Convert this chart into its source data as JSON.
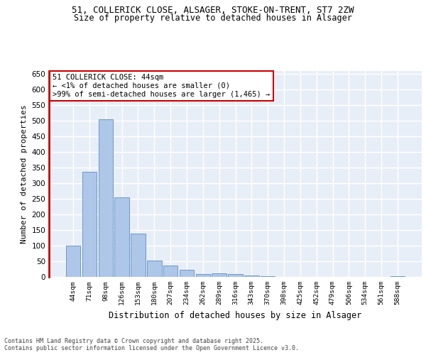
{
  "title_line1": "51, COLLERICK CLOSE, ALSAGER, STOKE-ON-TRENT, ST7 2ZW",
  "title_line2": "Size of property relative to detached houses in Alsager",
  "xlabel": "Distribution of detached houses by size in Alsager",
  "ylabel": "Number of detached properties",
  "categories": [
    "44sqm",
    "71sqm",
    "98sqm",
    "126sqm",
    "153sqm",
    "180sqm",
    "207sqm",
    "234sqm",
    "262sqm",
    "289sqm",
    "316sqm",
    "343sqm",
    "370sqm",
    "398sqm",
    "425sqm",
    "452sqm",
    "479sqm",
    "506sqm",
    "534sqm",
    "561sqm",
    "588sqm"
  ],
  "values": [
    100,
    337,
    505,
    255,
    138,
    53,
    37,
    23,
    8,
    12,
    10,
    5,
    2,
    1,
    1,
    1,
    1,
    1,
    1,
    1,
    3
  ],
  "bar_color": "#aec6e8",
  "bar_edge_color": "#5b8ec4",
  "background_color": "#e8eef8",
  "grid_color": "#ffffff",
  "annotation_box_text": "51 COLLERICK CLOSE: 44sqm\n← <1% of detached houses are smaller (0)\n>99% of semi-detached houses are larger (1,465) →",
  "annotation_box_color": "#ffffff",
  "annotation_box_edge_color": "#cc0000",
  "footer_text": "Contains HM Land Registry data © Crown copyright and database right 2025.\nContains public sector information licensed under the Open Government Licence v3.0.",
  "ylim": [
    0,
    660
  ],
  "yticks": [
    0,
    50,
    100,
    150,
    200,
    250,
    300,
    350,
    400,
    450,
    500,
    550,
    600,
    650
  ]
}
